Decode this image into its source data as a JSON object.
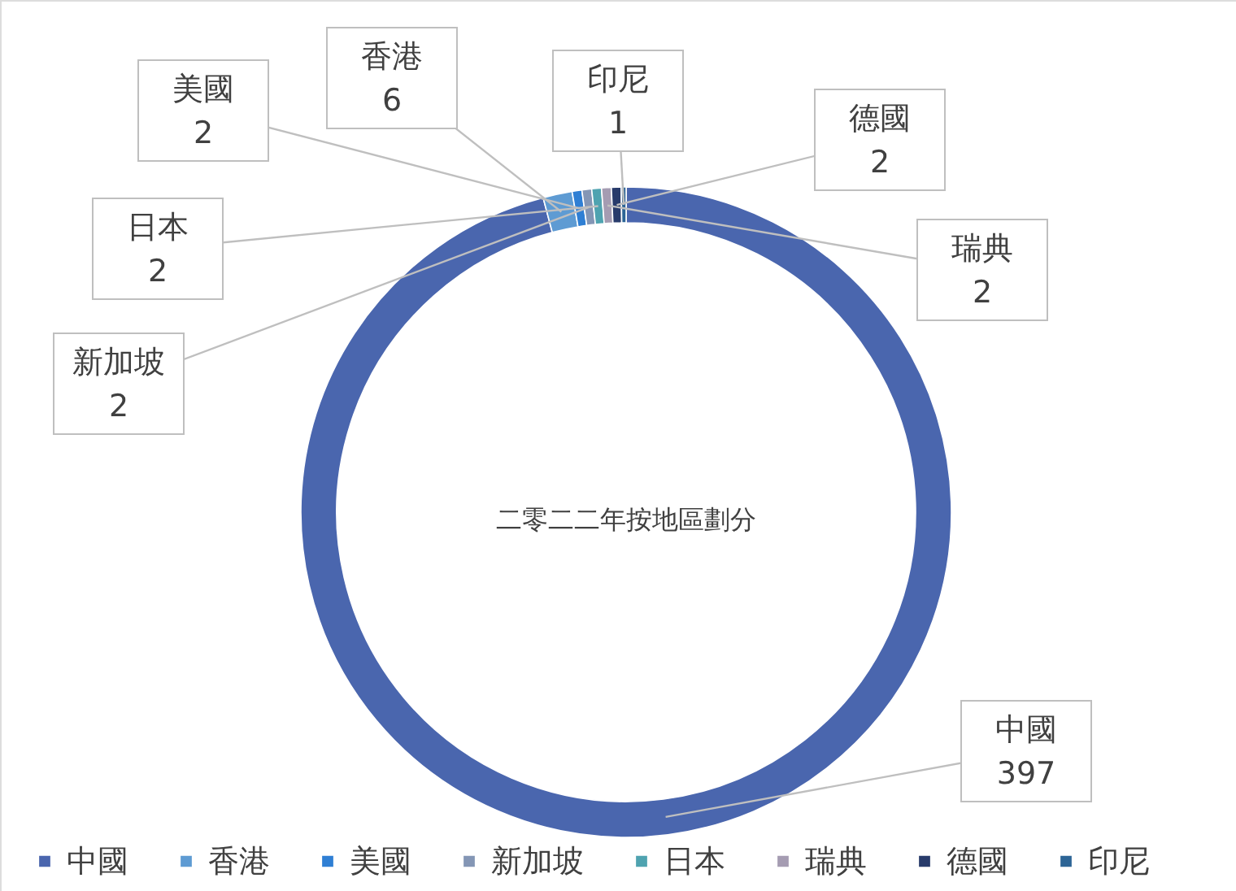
{
  "chart_data": {
    "type": "donut",
    "title": "二零二二年按地區劃分",
    "categories": [
      "中國",
      "香港",
      "美國",
      "新加坡",
      "日本",
      "瑞典",
      "德國",
      "印尼"
    ],
    "values": [
      397,
      6,
      2,
      2,
      2,
      2,
      2,
      1
    ],
    "colors": [
      "#4a66ae",
      "#5e9bd3",
      "#2f7fd4",
      "#8496b5",
      "#4fa3b0",
      "#a59cb2",
      "#283b6b",
      "#2d6596"
    ],
    "data_labels": true,
    "legend": "bottom"
  }
}
